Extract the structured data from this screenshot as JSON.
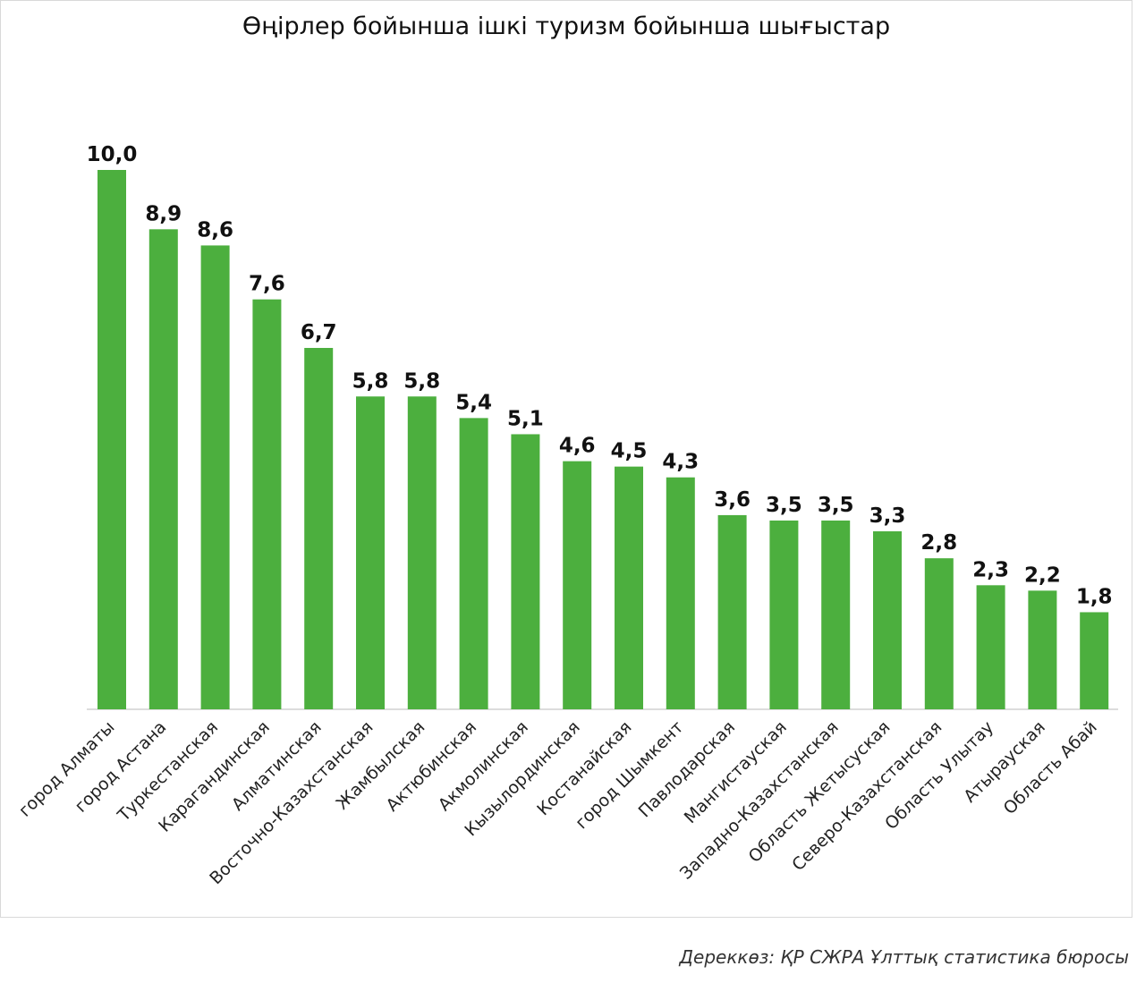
{
  "chart_data": {
    "type": "bar",
    "title": "Өңірлер бойынша ішкі туризм бойынша шығыстар",
    "xlabel": "",
    "ylabel": "",
    "ylim": [
      0,
      10.0
    ],
    "grid": false,
    "legend": "none",
    "bar_color": "#4caf3e",
    "categories": [
      "город Алматы",
      "город Астана",
      "Туркестанская",
      "Карагандинская",
      "Алматинская",
      "Восточно-Казахстанская",
      "Жамбылская",
      "Актюбинская",
      "Акмолинская",
      "Кызылординская",
      "Костанайская",
      "город Шымкент",
      "Павлодарская",
      "Мангистауская",
      "Западно-Казахстанская",
      "Область Жетысуская",
      "Северо-Казахстанская",
      "Область Улытау",
      "Атырауская",
      "Область Абай"
    ],
    "values": [
      10.0,
      8.9,
      8.6,
      7.6,
      6.7,
      5.8,
      5.8,
      5.4,
      5.1,
      4.6,
      4.5,
      4.3,
      3.6,
      3.5,
      3.5,
      3.3,
      2.8,
      2.3,
      2.2,
      1.8
    ],
    "value_labels": [
      "10,0",
      "8,9",
      "8,6",
      "7,6",
      "6,7",
      "5,8",
      "5,8",
      "5,4",
      "5,1",
      "4,6",
      "4,5",
      "4,3",
      "3,6",
      "3,5",
      "3,5",
      "3,3",
      "2,8",
      "2,3",
      "2,2",
      "1,8"
    ]
  },
  "source": "Дереккөз: ҚР СЖРА Ұлттық статистика бюросы"
}
